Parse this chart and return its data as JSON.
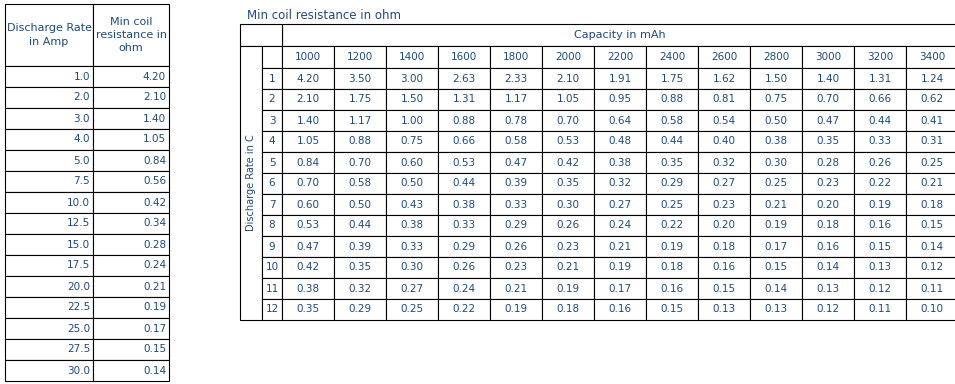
{
  "left_col1": [
    1.0,
    2.0,
    3.0,
    4.0,
    5.0,
    7.5,
    10.0,
    12.5,
    15.0,
    17.5,
    20.0,
    22.5,
    25.0,
    27.5,
    30.0
  ],
  "left_col2": [
    4.2,
    2.1,
    1.4,
    1.05,
    0.84,
    0.56,
    0.42,
    0.34,
    0.28,
    0.24,
    0.21,
    0.19,
    0.17,
    0.15,
    0.14
  ],
  "left_header1": "Discharge Rate\nin Amp",
  "left_header2": "Min coil\nresistance in\nohm",
  "right_title": "Min coil resistance in ohm",
  "right_col_header": "Capacity in mAh",
  "right_capacities": [
    1000,
    1200,
    1400,
    1600,
    1800,
    2000,
    2200,
    2400,
    2600,
    2800,
    3000,
    3200,
    3400
  ],
  "right_row_label": "Discharge Rate in C",
  "right_rows": [
    1,
    2,
    3,
    4,
    5,
    6,
    7,
    8,
    9,
    10,
    11,
    12
  ],
  "right_data": [
    [
      4.2,
      3.5,
      3.0,
      2.63,
      2.33,
      2.1,
      1.91,
      1.75,
      1.62,
      1.5,
      1.4,
      1.31,
      1.24
    ],
    [
      2.1,
      1.75,
      1.5,
      1.31,
      1.17,
      1.05,
      0.95,
      0.88,
      0.81,
      0.75,
      0.7,
      0.66,
      0.62
    ],
    [
      1.4,
      1.17,
      1.0,
      0.88,
      0.78,
      0.7,
      0.64,
      0.58,
      0.54,
      0.5,
      0.47,
      0.44,
      0.41
    ],
    [
      1.05,
      0.88,
      0.75,
      0.66,
      0.58,
      0.53,
      0.48,
      0.44,
      0.4,
      0.38,
      0.35,
      0.33,
      0.31
    ],
    [
      0.84,
      0.7,
      0.6,
      0.53,
      0.47,
      0.42,
      0.38,
      0.35,
      0.32,
      0.3,
      0.28,
      0.26,
      0.25
    ],
    [
      0.7,
      0.58,
      0.5,
      0.44,
      0.39,
      0.35,
      0.32,
      0.29,
      0.27,
      0.25,
      0.23,
      0.22,
      0.21
    ],
    [
      0.6,
      0.5,
      0.43,
      0.38,
      0.33,
      0.3,
      0.27,
      0.25,
      0.23,
      0.21,
      0.2,
      0.19,
      0.18
    ],
    [
      0.53,
      0.44,
      0.38,
      0.33,
      0.29,
      0.26,
      0.24,
      0.22,
      0.2,
      0.19,
      0.18,
      0.16,
      0.15
    ],
    [
      0.47,
      0.39,
      0.33,
      0.29,
      0.26,
      0.23,
      0.21,
      0.19,
      0.18,
      0.17,
      0.16,
      0.15,
      0.14
    ],
    [
      0.42,
      0.35,
      0.3,
      0.26,
      0.23,
      0.21,
      0.19,
      0.18,
      0.16,
      0.15,
      0.14,
      0.13,
      0.12
    ],
    [
      0.38,
      0.32,
      0.27,
      0.24,
      0.21,
      0.19,
      0.17,
      0.16,
      0.15,
      0.14,
      0.13,
      0.12,
      0.11
    ],
    [
      0.35,
      0.29,
      0.25,
      0.22,
      0.19,
      0.18,
      0.16,
      0.15,
      0.13,
      0.13,
      0.12,
      0.11,
      0.1
    ]
  ],
  "text_color": "#1F497D",
  "border_color": "#000000",
  "bg_color": "#FFFFFF",
  "font_size": 7.5,
  "header_font_size": 8.0,
  "title_font_size": 8.5
}
